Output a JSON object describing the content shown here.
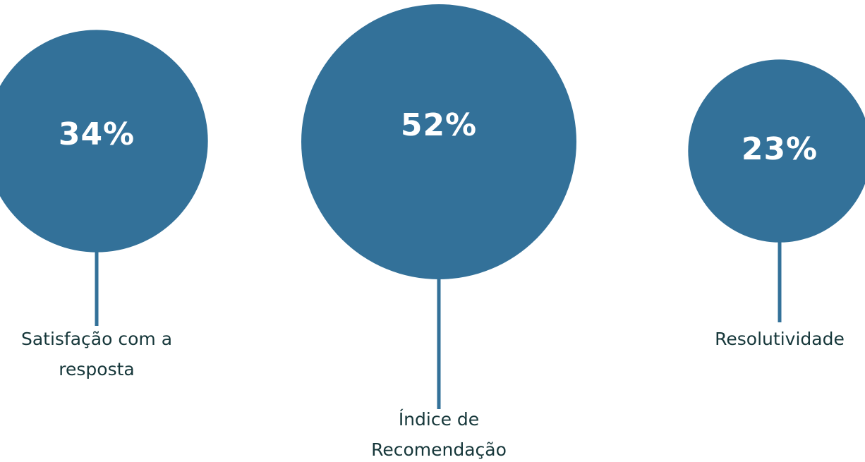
{
  "colors": {
    "bubble": "#337199",
    "stem": "#337199",
    "value_text": "#ffffff",
    "label_text": "#16373a",
    "background": "#ffffff"
  },
  "chart_data": {
    "type": "bubble",
    "title": "",
    "points": [
      {
        "label": "Satisfação com a resposta",
        "label_lines": [
          "Satisfação com a",
          "resposta"
        ],
        "value": 34,
        "display": "34%"
      },
      {
        "label": "Índice de Recomendação",
        "label_lines": [
          "Índice de",
          "Recomendação"
        ],
        "value": 52,
        "display": "52%"
      },
      {
        "label": "Resolutividade",
        "label_lines": [
          "Resolutividade"
        ],
        "value": 23,
        "display": "23%"
      }
    ]
  }
}
